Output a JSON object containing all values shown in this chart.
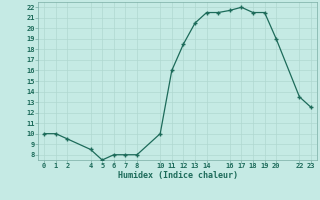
{
  "x": [
    0,
    1,
    2,
    4,
    5,
    6,
    7,
    8,
    10,
    11,
    12,
    13,
    14,
    15,
    16,
    17,
    18,
    19,
    20,
    22,
    23
  ],
  "y": [
    10.0,
    10.0,
    9.5,
    8.5,
    7.5,
    8.0,
    8.0,
    8.0,
    10.0,
    16.0,
    18.5,
    20.5,
    21.5,
    21.5,
    21.7,
    22.0,
    21.5,
    21.5,
    19.0,
    13.5,
    12.5
  ],
  "xlabel": "Humidex (Indice chaleur)",
  "xlim": [
    -0.5,
    23.5
  ],
  "ylim": [
    7.5,
    22.5
  ],
  "xticks": [
    0,
    1,
    2,
    4,
    5,
    6,
    7,
    8,
    10,
    11,
    12,
    13,
    14,
    16,
    17,
    18,
    19,
    20,
    22,
    23
  ],
  "yticks": [
    8,
    9,
    10,
    11,
    12,
    13,
    14,
    15,
    16,
    17,
    18,
    19,
    20,
    21,
    22
  ],
  "xtick_labels": [
    "0",
    "1",
    "2",
    "4",
    "5",
    "6",
    "7",
    "8",
    "1011",
    "12",
    "13",
    "14",
    "",
    "1617",
    "18",
    "19",
    "20",
    "",
    "2223",
    ""
  ],
  "line_color": "#1d6b5a",
  "bg_color": "#c5eae4",
  "grid_major_color": "#b0d8d0",
  "grid_minor_color": "#d8efeb",
  "spine_color": "#7aada4",
  "tick_color": "#7aada4",
  "label_color": "#1d6b5a",
  "xlabel_color": "#1d6b5a"
}
